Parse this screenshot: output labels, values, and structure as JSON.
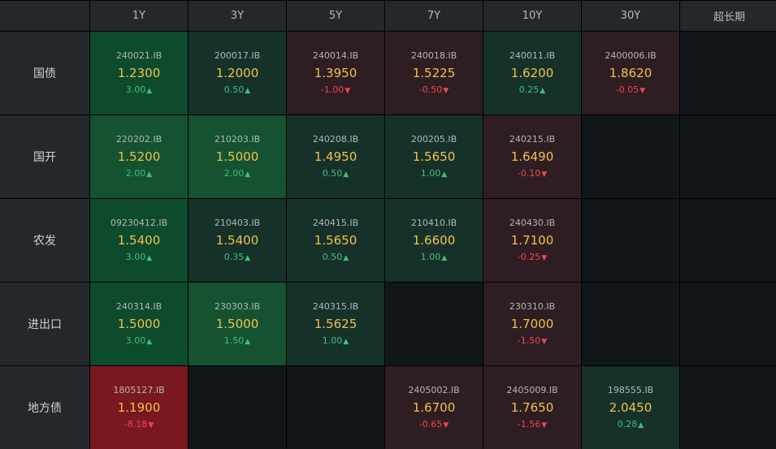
{
  "columns": [
    "1Y",
    "3Y",
    "5Y",
    "7Y",
    "10Y",
    "30Y",
    "超长期"
  ],
  "rows": [
    {
      "label": "国债",
      "cells": [
        {
          "code": "240021.IB",
          "rate": "1.2300",
          "change": "3.00",
          "dir": "up",
          "tone": "g3"
        },
        {
          "code": "200017.IB",
          "rate": "1.2000",
          "change": "0.50",
          "dir": "up",
          "tone": "g1"
        },
        {
          "code": "240014.IB",
          "rate": "1.3950",
          "change": "-1.00",
          "dir": "down",
          "tone": "r1"
        },
        {
          "code": "240018.IB",
          "rate": "1.5225",
          "change": "-0.50",
          "dir": "down",
          "tone": "r1"
        },
        {
          "code": "240011.IB",
          "rate": "1.6200",
          "change": "0.25",
          "dir": "up",
          "tone": "g1"
        },
        {
          "code": "2400006.IB",
          "rate": "1.8620",
          "change": "-0.05",
          "dir": "down",
          "tone": "r1"
        },
        null
      ]
    },
    {
      "label": "国开",
      "cells": [
        {
          "code": "220202.IB",
          "rate": "1.5200",
          "change": "2.00",
          "dir": "up",
          "tone": "g2"
        },
        {
          "code": "210203.IB",
          "rate": "1.5000",
          "change": "2.00",
          "dir": "up",
          "tone": "g2"
        },
        {
          "code": "240208.IB",
          "rate": "1.4950",
          "change": "0.50",
          "dir": "up",
          "tone": "g1"
        },
        {
          "code": "200205.IB",
          "rate": "1.5650",
          "change": "1.00",
          "dir": "up",
          "tone": "g1"
        },
        {
          "code": "240215.IB",
          "rate": "1.6490",
          "change": "-0.10",
          "dir": "down",
          "tone": "r1"
        },
        null,
        null
      ]
    },
    {
      "label": "农发",
      "cells": [
        {
          "code": "09230412.IB",
          "rate": "1.5400",
          "change": "3.00",
          "dir": "up",
          "tone": "g3"
        },
        {
          "code": "210403.IB",
          "rate": "1.5400",
          "change": "0.35",
          "dir": "up",
          "tone": "g1"
        },
        {
          "code": "240415.IB",
          "rate": "1.5650",
          "change": "0.50",
          "dir": "up",
          "tone": "g1"
        },
        {
          "code": "210410.IB",
          "rate": "1.6600",
          "change": "1.00",
          "dir": "up",
          "tone": "g1"
        },
        {
          "code": "240430.IB",
          "rate": "1.7100",
          "change": "-0.25",
          "dir": "down",
          "tone": "r1"
        },
        null,
        null
      ]
    },
    {
      "label": "进出口",
      "cells": [
        {
          "code": "240314.IB",
          "rate": "1.5000",
          "change": "3.00",
          "dir": "up",
          "tone": "g3"
        },
        {
          "code": "230303.IB",
          "rate": "1.5000",
          "change": "1.50",
          "dir": "up",
          "tone": "g2"
        },
        {
          "code": "240315.IB",
          "rate": "1.5625",
          "change": "1.00",
          "dir": "up",
          "tone": "g1"
        },
        null,
        {
          "code": "230310.IB",
          "rate": "1.7000",
          "change": "-1.50",
          "dir": "down",
          "tone": "r1"
        },
        null,
        null
      ]
    },
    {
      "label": "地方债",
      "cells": [
        {
          "code": "1805127.IB",
          "rate": "1.1900",
          "change": "-8.18",
          "dir": "down",
          "tone": "r3"
        },
        null,
        null,
        {
          "code": "2405002.IB",
          "rate": "1.6700",
          "change": "-0.65",
          "dir": "down",
          "tone": "r1"
        },
        {
          "code": "2405009.IB",
          "rate": "1.7650",
          "change": "-1.56",
          "dir": "down",
          "tone": "r1"
        },
        {
          "code": "198555.IB",
          "rate": "2.0450",
          "change": "0.28",
          "dir": "up",
          "tone": "g1"
        },
        null
      ]
    }
  ],
  "icons": {
    "up": "triangle-up-icon",
    "down": "triangle-down-icon"
  },
  "colors": {
    "up": "#3fc07a",
    "down": "#f0474f",
    "rate": "#f0c24a"
  }
}
